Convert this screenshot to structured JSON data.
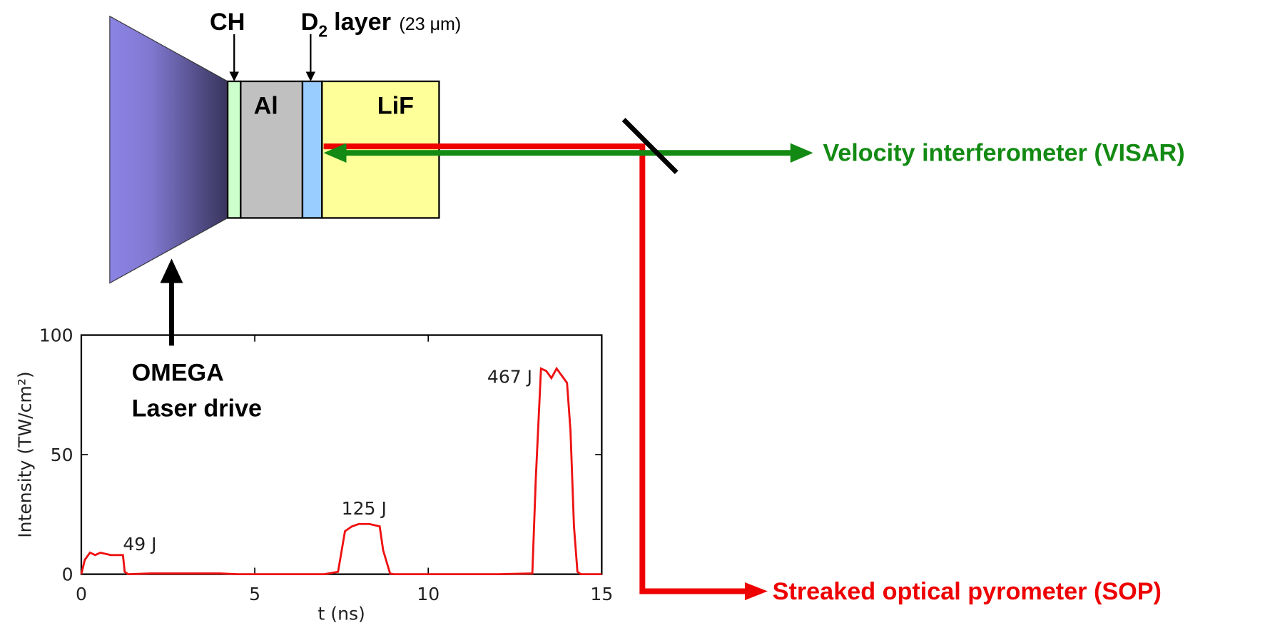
{
  "diagram": {
    "labels": {
      "ch": "CH",
      "d2_symbol": "D",
      "d2_subscript": "2",
      "d2_layer": "layer",
      "d2_thickness": "(23 μm)",
      "al": "Al",
      "lif": "LiF",
      "laser_1": "OMEGA",
      "laser_2": "Laser drive",
      "visar": "Velocity interferometer (VISAR)",
      "sop": "Streaked optical pyrometer (SOP)"
    }
  },
  "chart_data": {
    "type": "line",
    "xlabel": "t (ns)",
    "ylabel": "Intensity (TW/cm²)",
    "x": [
      0,
      0.1,
      0.25,
      0.4,
      0.55,
      0.7,
      0.85,
      1.0,
      1.2,
      1.25,
      1.35,
      2,
      4,
      4.5,
      5,
      7,
      7.4,
      7.6,
      7.8,
      8,
      8.3,
      8.6,
      8.7,
      8.9,
      9,
      10,
      12,
      13,
      13.1,
      13.25,
      13.4,
      13.55,
      13.7,
      13.85,
      14.0,
      14.1,
      14.2,
      14.3,
      14.4,
      15
    ],
    "series": [
      {
        "color": "#ee1111",
        "values": [
          0,
          6,
          9,
          8,
          9,
          8.5,
          8,
          8,
          8,
          1,
          0,
          0.3,
          0.3,
          0,
          0,
          0,
          1,
          18,
          20,
          21,
          21,
          20,
          10,
          0.3,
          0,
          0,
          0,
          0.3,
          40,
          86,
          85,
          82,
          86,
          83,
          80,
          60,
          20,
          1,
          0,
          0
        ]
      }
    ],
    "annotations": [
      {
        "text": "49 J",
        "x": 1.2,
        "y": 10
      },
      {
        "text": "125 J",
        "x": 7.5,
        "y": 25
      },
      {
        "text": "467 J",
        "x": 11.7,
        "y": 80
      }
    ],
    "xlim": [
      0,
      15
    ],
    "ylim": [
      0,
      100
    ],
    "xticks": [
      0,
      5,
      10,
      15
    ],
    "yticks": [
      0,
      50,
      100
    ]
  }
}
